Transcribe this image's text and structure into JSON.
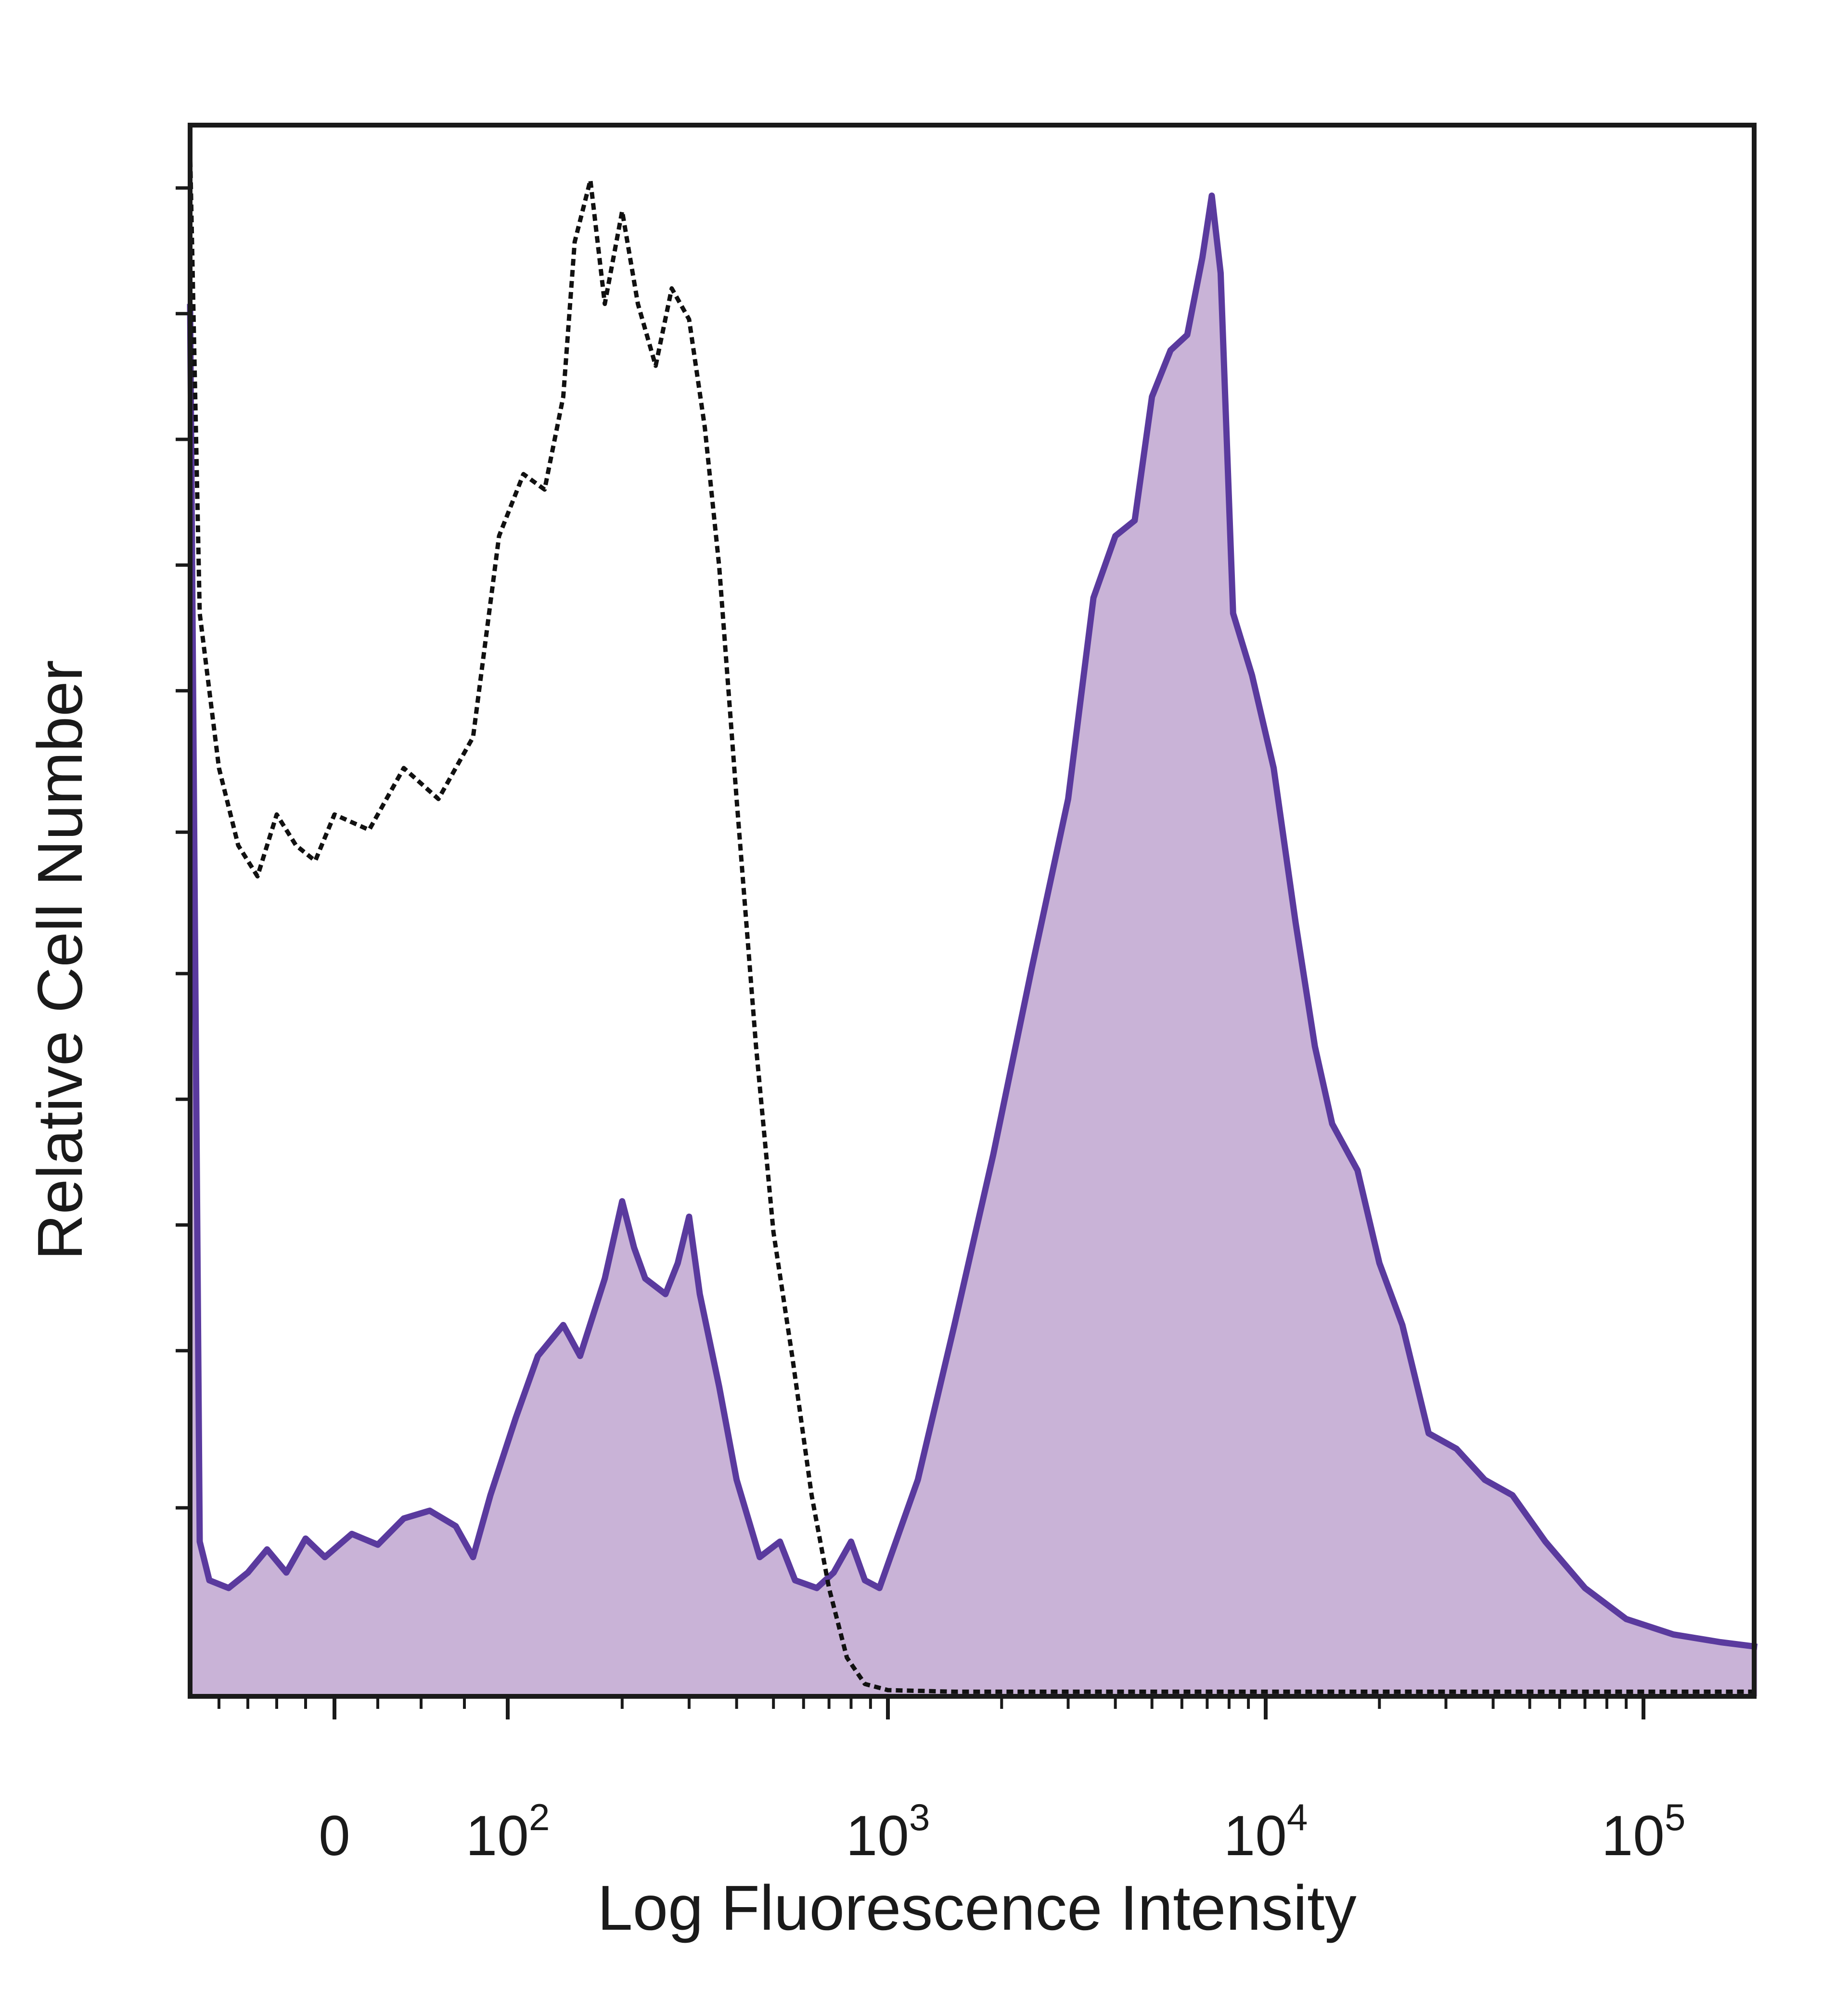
{
  "chart_data": {
    "type": "area",
    "xlabel": "Log Fluorescence Intensity",
    "ylabel": "Relative Cell Number",
    "x_scale": "biexponential",
    "xlim": [
      -150,
      200000
    ],
    "ylim": [
      0,
      100
    ],
    "grid": false,
    "legend": "none",
    "x_ticks": [
      {
        "value": 0,
        "base": "0",
        "exp": ""
      },
      {
        "value": 100,
        "base": "10",
        "exp": "2"
      },
      {
        "value": 1000,
        "base": "10",
        "exp": "3"
      },
      {
        "value": 10000,
        "base": "10",
        "exp": "4"
      },
      {
        "value": 100000,
        "base": "10",
        "exp": "5"
      }
    ],
    "series": [
      {
        "style": "dashed",
        "color": "#111111",
        "fill": "none",
        "points": [
          [
            -150,
            100
          ],
          [
            -140,
            70
          ],
          [
            -120,
            60
          ],
          [
            -100,
            55
          ],
          [
            -80,
            53
          ],
          [
            -60,
            57
          ],
          [
            -40,
            55
          ],
          [
            -20,
            54
          ],
          [
            0,
            57
          ],
          [
            20,
            56
          ],
          [
            40,
            60
          ],
          [
            60,
            58
          ],
          [
            80,
            62
          ],
          [
            95,
            75
          ],
          [
            110,
            79
          ],
          [
            125,
            78
          ],
          [
            140,
            84
          ],
          [
            150,
            94
          ],
          [
            165,
            98
          ],
          [
            180,
            90
          ],
          [
            200,
            96
          ],
          [
            220,
            90
          ],
          [
            245,
            86
          ],
          [
            270,
            91
          ],
          [
            300,
            89
          ],
          [
            330,
            82
          ],
          [
            360,
            73
          ],
          [
            400,
            58
          ],
          [
            450,
            42
          ],
          [
            500,
            30
          ],
          [
            560,
            22
          ],
          [
            630,
            13
          ],
          [
            700,
            7
          ],
          [
            780,
            2.5
          ],
          [
            870,
            0.8
          ],
          [
            1000,
            0.4
          ],
          [
            1500,
            0.3
          ],
          [
            3000,
            0.3
          ],
          [
            10000,
            0.3
          ],
          [
            50000,
            0.3
          ],
          [
            200000,
            0.3
          ]
        ]
      },
      {
        "style": "solid",
        "color": "#5a3a9e",
        "fill": "#c9b3d7",
        "points": [
          [
            -150,
            90
          ],
          [
            -140,
            10
          ],
          [
            -130,
            7.5
          ],
          [
            -110,
            7
          ],
          [
            -90,
            8
          ],
          [
            -70,
            9.5
          ],
          [
            -50,
            8
          ],
          [
            -30,
            10.2
          ],
          [
            -10,
            9
          ],
          [
            10,
            10.5
          ],
          [
            25,
            9.8
          ],
          [
            40,
            11.5
          ],
          [
            55,
            12
          ],
          [
            70,
            11
          ],
          [
            80,
            9
          ],
          [
            90,
            13
          ],
          [
            105,
            18
          ],
          [
            120,
            22
          ],
          [
            140,
            24
          ],
          [
            155,
            22
          ],
          [
            180,
            27
          ],
          [
            200,
            32
          ],
          [
            215,
            29
          ],
          [
            230,
            27
          ],
          [
            260,
            26
          ],
          [
            280,
            28
          ],
          [
            300,
            31
          ],
          [
            320,
            26
          ],
          [
            360,
            20
          ],
          [
            400,
            14
          ],
          [
            460,
            9
          ],
          [
            520,
            10
          ],
          [
            570,
            7.5
          ],
          [
            650,
            7
          ],
          [
            720,
            8
          ],
          [
            800,
            10
          ],
          [
            870,
            7.5
          ],
          [
            950,
            7
          ],
          [
            1200,
            14
          ],
          [
            1500,
            24
          ],
          [
            1900,
            35
          ],
          [
            2400,
            47
          ],
          [
            3000,
            58
          ],
          [
            3500,
            71
          ],
          [
            4000,
            75
          ],
          [
            4500,
            76
          ],
          [
            5000,
            84
          ],
          [
            5600,
            87
          ],
          [
            6200,
            88
          ],
          [
            6800,
            93
          ],
          [
            7200,
            97
          ],
          [
            7600,
            92
          ],
          [
            8200,
            70
          ],
          [
            9200,
            66
          ],
          [
            10500,
            60
          ],
          [
            12000,
            50
          ],
          [
            13500,
            42
          ],
          [
            15000,
            37
          ],
          [
            17500,
            34
          ],
          [
            20000,
            28
          ],
          [
            23000,
            24
          ],
          [
            27000,
            17
          ],
          [
            32000,
            16
          ],
          [
            38000,
            14
          ],
          [
            45000,
            13
          ],
          [
            55000,
            10
          ],
          [
            70000,
            7
          ],
          [
            90000,
            5
          ],
          [
            120000,
            4
          ],
          [
            160000,
            3.5
          ],
          [
            200000,
            3.2
          ]
        ]
      }
    ]
  }
}
